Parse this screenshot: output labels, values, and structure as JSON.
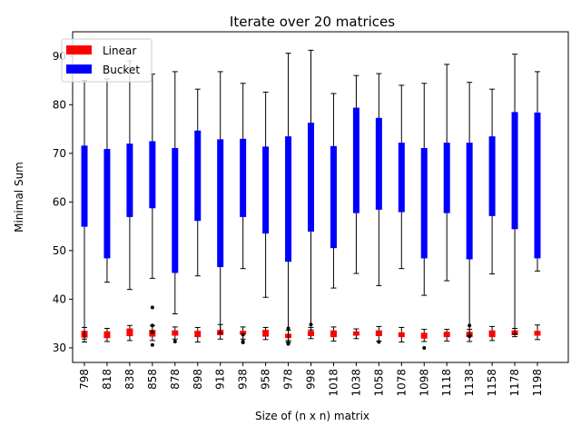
{
  "chart_data": {
    "type": "box",
    "title": "Iterate over 20 matrices",
    "xlabel": "Size of (n x n) matrix",
    "ylabel": "Minimal Sum",
    "categories": [
      "798",
      "818",
      "838",
      "858",
      "878",
      "898",
      "918",
      "938",
      "958",
      "978",
      "998",
      "1018",
      "1038",
      "1058",
      "1078",
      "1098",
      "1118",
      "1138",
      "1158",
      "1178",
      "1198"
    ],
    "ylim": [
      27,
      95
    ],
    "yticks": [
      30,
      40,
      50,
      60,
      70,
      80,
      90
    ],
    "grid": false,
    "legend_position": "top-left",
    "series": [
      {
        "name": "Linear",
        "color": "#ff0000",
        "boxes": [
          {
            "whislo": 31.2,
            "q1": 32.2,
            "med": 32.8,
            "q3": 33.4,
            "whishi": 34.2,
            "fliers": []
          },
          {
            "whislo": 31.3,
            "q1": 32.1,
            "med": 32.7,
            "q3": 33.3,
            "whishi": 34.0,
            "fliers": []
          },
          {
            "whislo": 31.5,
            "q1": 32.5,
            "med": 33.1,
            "q3": 33.9,
            "whishi": 34.6,
            "fliers": []
          },
          {
            "whislo": 31.5,
            "q1": 32.4,
            "med": 33.0,
            "q3": 33.6,
            "whishi": 34.6,
            "fliers": [
              38.3,
              30.6,
              34.6,
              33.2
            ]
          },
          {
            "whislo": 31.8,
            "q1": 32.6,
            "med": 33.0,
            "q3": 33.5,
            "whishi": 34.3,
            "fliers": [
              31.3
            ]
          },
          {
            "whislo": 31.2,
            "q1": 32.3,
            "med": 32.9,
            "q3": 33.4,
            "whishi": 34.2,
            "fliers": []
          },
          {
            "whislo": 31.8,
            "q1": 32.7,
            "med": 33.1,
            "q3": 33.6,
            "whishi": 34.8,
            "fliers": []
          },
          {
            "whislo": 31.8,
            "q1": 32.8,
            "med": 33.1,
            "q3": 33.4,
            "whishi": 34.3,
            "fliers": [
              31.3,
              31.1,
              32.7
            ]
          },
          {
            "whislo": 31.7,
            "q1": 32.4,
            "med": 32.9,
            "q3": 33.6,
            "whishi": 34.2,
            "fliers": []
          },
          {
            "whislo": 31.5,
            "q1": 32.1,
            "med": 32.4,
            "q3": 32.8,
            "whishi": 33.6,
            "fliers": [
              34.0,
              31.0,
              30.8
            ]
          },
          {
            "whislo": 31.9,
            "q1": 32.5,
            "med": 33.0,
            "q3": 33.4,
            "whishi": 34.2,
            "fliers": [
              34.8
            ]
          },
          {
            "whislo": 31.4,
            "q1": 32.3,
            "med": 32.8,
            "q3": 33.5,
            "whishi": 34.3,
            "fliers": []
          },
          {
            "whislo": 31.9,
            "q1": 32.6,
            "med": 33.0,
            "q3": 33.3,
            "whishi": 33.9,
            "fliers": []
          },
          {
            "whislo": 31.4,
            "q1": 32.5,
            "med": 33.0,
            "q3": 33.5,
            "whishi": 34.4,
            "fliers": [
              31.2
            ]
          },
          {
            "whislo": 31.2,
            "q1": 32.3,
            "med": 32.7,
            "q3": 33.1,
            "whishi": 34.2,
            "fliers": []
          },
          {
            "whislo": 31.3,
            "q1": 32.0,
            "med": 32.5,
            "q3": 33.0,
            "whishi": 33.8,
            "fliers": [
              30.0
            ]
          },
          {
            "whislo": 31.4,
            "q1": 32.3,
            "med": 32.7,
            "q3": 33.2,
            "whishi": 33.8,
            "fliers": []
          },
          {
            "whislo": 31.3,
            "q1": 32.3,
            "med": 32.7,
            "q3": 33.2,
            "whishi": 33.8,
            "fliers": [
              34.6,
              32.4
            ]
          },
          {
            "whislo": 31.5,
            "q1": 32.3,
            "med": 32.8,
            "q3": 33.5,
            "whishi": 34.4,
            "fliers": []
          },
          {
            "whislo": 32.3,
            "q1": 32.7,
            "med": 33.1,
            "q3": 33.5,
            "whishi": 34.0,
            "fliers": []
          },
          {
            "whislo": 31.7,
            "q1": 32.6,
            "med": 33.0,
            "q3": 33.4,
            "whishi": 34.7,
            "fliers": []
          }
        ]
      },
      {
        "name": "Bucket",
        "color": "#0000ff",
        "boxes": [
          {
            "whislo": 31.8,
            "q1": 55.0,
            "med": 67.0,
            "q3": 71.5,
            "whishi": 85.0,
            "fliers": []
          },
          {
            "whislo": 43.5,
            "q1": 48.5,
            "med": 56.0,
            "q3": 70.8,
            "whishi": 85.3,
            "fliers": []
          },
          {
            "whislo": 42.0,
            "q1": 57.0,
            "med": 66.0,
            "q3": 71.9,
            "whishi": 89.0,
            "fliers": []
          },
          {
            "whislo": 44.3,
            "q1": 58.8,
            "med": 69.0,
            "q3": 72.4,
            "whishi": 86.3,
            "fliers": []
          },
          {
            "whislo": 37.0,
            "q1": 45.5,
            "med": 60.0,
            "q3": 71.0,
            "whishi": 86.8,
            "fliers": []
          },
          {
            "whislo": 44.8,
            "q1": 56.2,
            "med": 62.0,
            "q3": 74.6,
            "whishi": 83.2,
            "fliers": []
          },
          {
            "whislo": 33.0,
            "q1": 46.7,
            "med": 57.0,
            "q3": 72.8,
            "whishi": 86.8,
            "fliers": []
          },
          {
            "whislo": 46.3,
            "q1": 57.0,
            "med": 64.0,
            "q3": 72.9,
            "whishi": 84.4,
            "fliers": []
          },
          {
            "whislo": 40.4,
            "q1": 53.6,
            "med": 58.0,
            "q3": 71.3,
            "whishi": 82.6,
            "fliers": []
          },
          {
            "whislo": 31.2,
            "q1": 47.8,
            "med": 64.0,
            "q3": 73.4,
            "whishi": 90.6,
            "fliers": []
          },
          {
            "whislo": 33.7,
            "q1": 54.0,
            "med": 70.6,
            "q3": 76.2,
            "whishi": 91.2,
            "fliers": []
          },
          {
            "whislo": 42.3,
            "q1": 50.6,
            "med": 62.0,
            "q3": 71.4,
            "whishi": 82.3,
            "fliers": []
          },
          {
            "whislo": 45.3,
            "q1": 57.8,
            "med": 68.5,
            "q3": 79.3,
            "whishi": 86.0,
            "fliers": []
          },
          {
            "whislo": 42.8,
            "q1": 58.5,
            "med": 67.0,
            "q3": 77.2,
            "whishi": 86.4,
            "fliers": []
          },
          {
            "whislo": 46.3,
            "q1": 58.0,
            "med": 70.0,
            "q3": 72.1,
            "whishi": 84.0,
            "fliers": []
          },
          {
            "whislo": 40.8,
            "q1": 48.5,
            "med": 58.0,
            "q3": 71.0,
            "whishi": 84.4,
            "fliers": []
          },
          {
            "whislo": 43.8,
            "q1": 57.8,
            "med": 69.0,
            "q3": 72.1,
            "whishi": 88.3,
            "fliers": []
          },
          {
            "whislo": 32.6,
            "q1": 48.3,
            "med": 60.0,
            "q3": 72.1,
            "whishi": 84.6,
            "fliers": []
          },
          {
            "whislo": 45.2,
            "q1": 57.2,
            "med": 64.0,
            "q3": 73.4,
            "whishi": 83.2,
            "fliers": []
          },
          {
            "whislo": 32.8,
            "q1": 54.5,
            "med": 69.0,
            "q3": 78.4,
            "whishi": 90.4,
            "fliers": []
          },
          {
            "whislo": 45.8,
            "q1": 48.5,
            "med": 58.0,
            "q3": 78.3,
            "whishi": 86.8,
            "fliers": []
          }
        ]
      }
    ]
  }
}
